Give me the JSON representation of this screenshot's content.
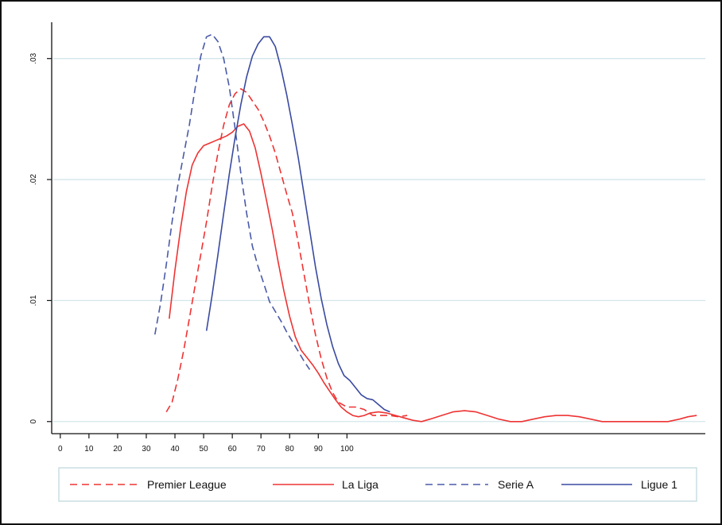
{
  "chart_data": {
    "type": "line",
    "title": "",
    "xlabel": "",
    "ylabel": "",
    "xlim": [
      -3,
      225
    ],
    "ylim": [
      -0.001,
      0.033
    ],
    "x_ticks": [
      0,
      10,
      20,
      30,
      40,
      50,
      60,
      70,
      80,
      90,
      100
    ],
    "x_tick_labels": [
      "0",
      "10",
      "20",
      "30",
      "40",
      "50",
      "60",
      "70",
      "80",
      "90",
      "100"
    ],
    "y_ticks": [
      0,
      0.01,
      0.02,
      0.03
    ],
    "y_tick_labels": [
      "0",
      ".01",
      ".02",
      ".03"
    ],
    "grid": "horizontal",
    "legend_position": "bottom",
    "series": [
      {
        "name": "Premier League",
        "color": "#ee3333",
        "dash": "dashed",
        "points": [
          [
            37,
            0.0008
          ],
          [
            39,
            0.0016
          ],
          [
            41,
            0.0035
          ],
          [
            43,
            0.0058
          ],
          [
            45,
            0.0085
          ],
          [
            47,
            0.0112
          ],
          [
            49,
            0.0138
          ],
          [
            51,
            0.0165
          ],
          [
            53,
            0.0195
          ],
          [
            55,
            0.0222
          ],
          [
            57,
            0.0245
          ],
          [
            59,
            0.0262
          ],
          [
            61,
            0.0271
          ],
          [
            63,
            0.0275
          ],
          [
            65,
            0.0272
          ],
          [
            67,
            0.0265
          ],
          [
            69,
            0.0258
          ],
          [
            71,
            0.0248
          ],
          [
            73,
            0.0236
          ],
          [
            75,
            0.0222
          ],
          [
            77,
            0.0205
          ],
          [
            79,
            0.0188
          ],
          [
            81,
            0.0172
          ],
          [
            83,
            0.0148
          ],
          [
            85,
            0.0122
          ],
          [
            87,
            0.0096
          ],
          [
            89,
            0.0072
          ],
          [
            91,
            0.0052
          ],
          [
            93,
            0.0036
          ],
          [
            95,
            0.0024
          ],
          [
            97,
            0.0016
          ],
          [
            100,
            0.0012
          ],
          [
            103,
            0.0012
          ],
          [
            106,
            0.001
          ],
          [
            109,
            0.0005
          ],
          [
            112,
            0.0005
          ],
          [
            115,
            0.0005
          ],
          [
            118,
            0.0004
          ],
          [
            121,
            0.0005
          ]
        ]
      },
      {
        "name": "La Liga",
        "color": "#ee3333",
        "dash": "solid",
        "points": [
          [
            38,
            0.0085
          ],
          [
            40,
            0.0125
          ],
          [
            42,
            0.016
          ],
          [
            44,
            0.019
          ],
          [
            46,
            0.0212
          ],
          [
            48,
            0.0222
          ],
          [
            50,
            0.0228
          ],
          [
            52,
            0.023
          ],
          [
            54,
            0.0232
          ],
          [
            56,
            0.0234
          ],
          [
            58,
            0.0236
          ],
          [
            60,
            0.0239
          ],
          [
            62,
            0.0244
          ],
          [
            64,
            0.0246
          ],
          [
            66,
            0.024
          ],
          [
            68,
            0.0226
          ],
          [
            70,
            0.0205
          ],
          [
            72,
            0.0182
          ],
          [
            74,
            0.0158
          ],
          [
            76,
            0.0132
          ],
          [
            78,
            0.0108
          ],
          [
            80,
            0.0087
          ],
          [
            82,
            0.007
          ],
          [
            84,
            0.0059
          ],
          [
            86,
            0.0053
          ],
          [
            88,
            0.0047
          ],
          [
            90,
            0.004
          ],
          [
            92,
            0.0032
          ],
          [
            94,
            0.0025
          ],
          [
            96,
            0.0018
          ],
          [
            98,
            0.0012
          ],
          [
            100,
            0.0008
          ],
          [
            102,
            0.0005
          ],
          [
            104,
            0.0004
          ],
          [
            106,
            0.0005
          ],
          [
            108,
            0.0007
          ],
          [
            111,
            0.0008
          ],
          [
            114,
            0.0007
          ],
          [
            117,
            0.0005
          ],
          [
            120,
            0.0003
          ],
          [
            123,
            0.0001
          ],
          [
            126,
            0.0
          ],
          [
            129,
            0.0002
          ],
          [
            133,
            0.0005
          ],
          [
            137,
            0.0008
          ],
          [
            141,
            0.0009
          ],
          [
            145,
            0.0008
          ],
          [
            149,
            0.0005
          ],
          [
            153,
            0.0002
          ],
          [
            157,
            0.0
          ],
          [
            161,
            0.0
          ],
          [
            165,
            0.0002
          ],
          [
            169,
            0.0004
          ],
          [
            173,
            0.0005
          ],
          [
            177,
            0.0005
          ],
          [
            181,
            0.0004
          ],
          [
            185,
            0.0002
          ],
          [
            189,
            0.0
          ],
          [
            195,
            0.0
          ],
          [
            201,
            0.0
          ],
          [
            207,
            0.0
          ],
          [
            212,
            0.0
          ],
          [
            216,
            0.0002
          ],
          [
            219,
            0.0004
          ],
          [
            222,
            0.0005
          ]
        ]
      },
      {
        "name": "Serie A",
        "color": "#4a5aa8",
        "dash": "dashed",
        "points": [
          [
            33,
            0.0072
          ],
          [
            35,
            0.0098
          ],
          [
            37,
            0.013
          ],
          [
            39,
            0.0165
          ],
          [
            41,
            0.0195
          ],
          [
            43,
            0.022
          ],
          [
            45,
            0.0245
          ],
          [
            47,
            0.0275
          ],
          [
            49,
            0.0302
          ],
          [
            51,
            0.0318
          ],
          [
            53,
            0.032
          ],
          [
            55,
            0.0314
          ],
          [
            57,
            0.03
          ],
          [
            59,
            0.0276
          ],
          [
            61,
            0.0242
          ],
          [
            63,
            0.0205
          ],
          [
            65,
            0.0172
          ],
          [
            67,
            0.0145
          ],
          [
            69,
            0.0128
          ],
          [
            71,
            0.0114
          ],
          [
            73,
            0.0099
          ],
          [
            75,
            0.0091
          ],
          [
            77,
            0.0083
          ],
          [
            79,
            0.0074
          ],
          [
            81,
            0.0066
          ],
          [
            83,
            0.0058
          ],
          [
            85,
            0.005
          ],
          [
            87,
            0.0043
          ]
        ]
      },
      {
        "name": "Ligue 1",
        "color": "#3a4aa0",
        "dash": "solid",
        "points": [
          [
            51,
            0.0075
          ],
          [
            53,
            0.0105
          ],
          [
            55,
            0.0138
          ],
          [
            57,
            0.0172
          ],
          [
            59,
            0.0205
          ],
          [
            61,
            0.0235
          ],
          [
            63,
            0.0262
          ],
          [
            65,
            0.0285
          ],
          [
            67,
            0.0302
          ],
          [
            69,
            0.0312
          ],
          [
            71,
            0.0318
          ],
          [
            73,
            0.0318
          ],
          [
            75,
            0.031
          ],
          [
            77,
            0.0292
          ],
          [
            79,
            0.027
          ],
          [
            81,
            0.0245
          ],
          [
            83,
            0.0218
          ],
          [
            85,
            0.0188
          ],
          [
            87,
            0.0158
          ],
          [
            89,
            0.0128
          ],
          [
            91,
            0.0102
          ],
          [
            93,
            0.008
          ],
          [
            95,
            0.0062
          ],
          [
            97,
            0.0048
          ],
          [
            99,
            0.0038
          ],
          [
            101,
            0.0034
          ],
          [
            103,
            0.0028
          ],
          [
            105,
            0.0022
          ],
          [
            107,
            0.0019
          ],
          [
            109,
            0.0018
          ],
          [
            111,
            0.0014
          ],
          [
            113,
            0.001
          ],
          [
            115,
            0.0008
          ]
        ]
      }
    ]
  }
}
